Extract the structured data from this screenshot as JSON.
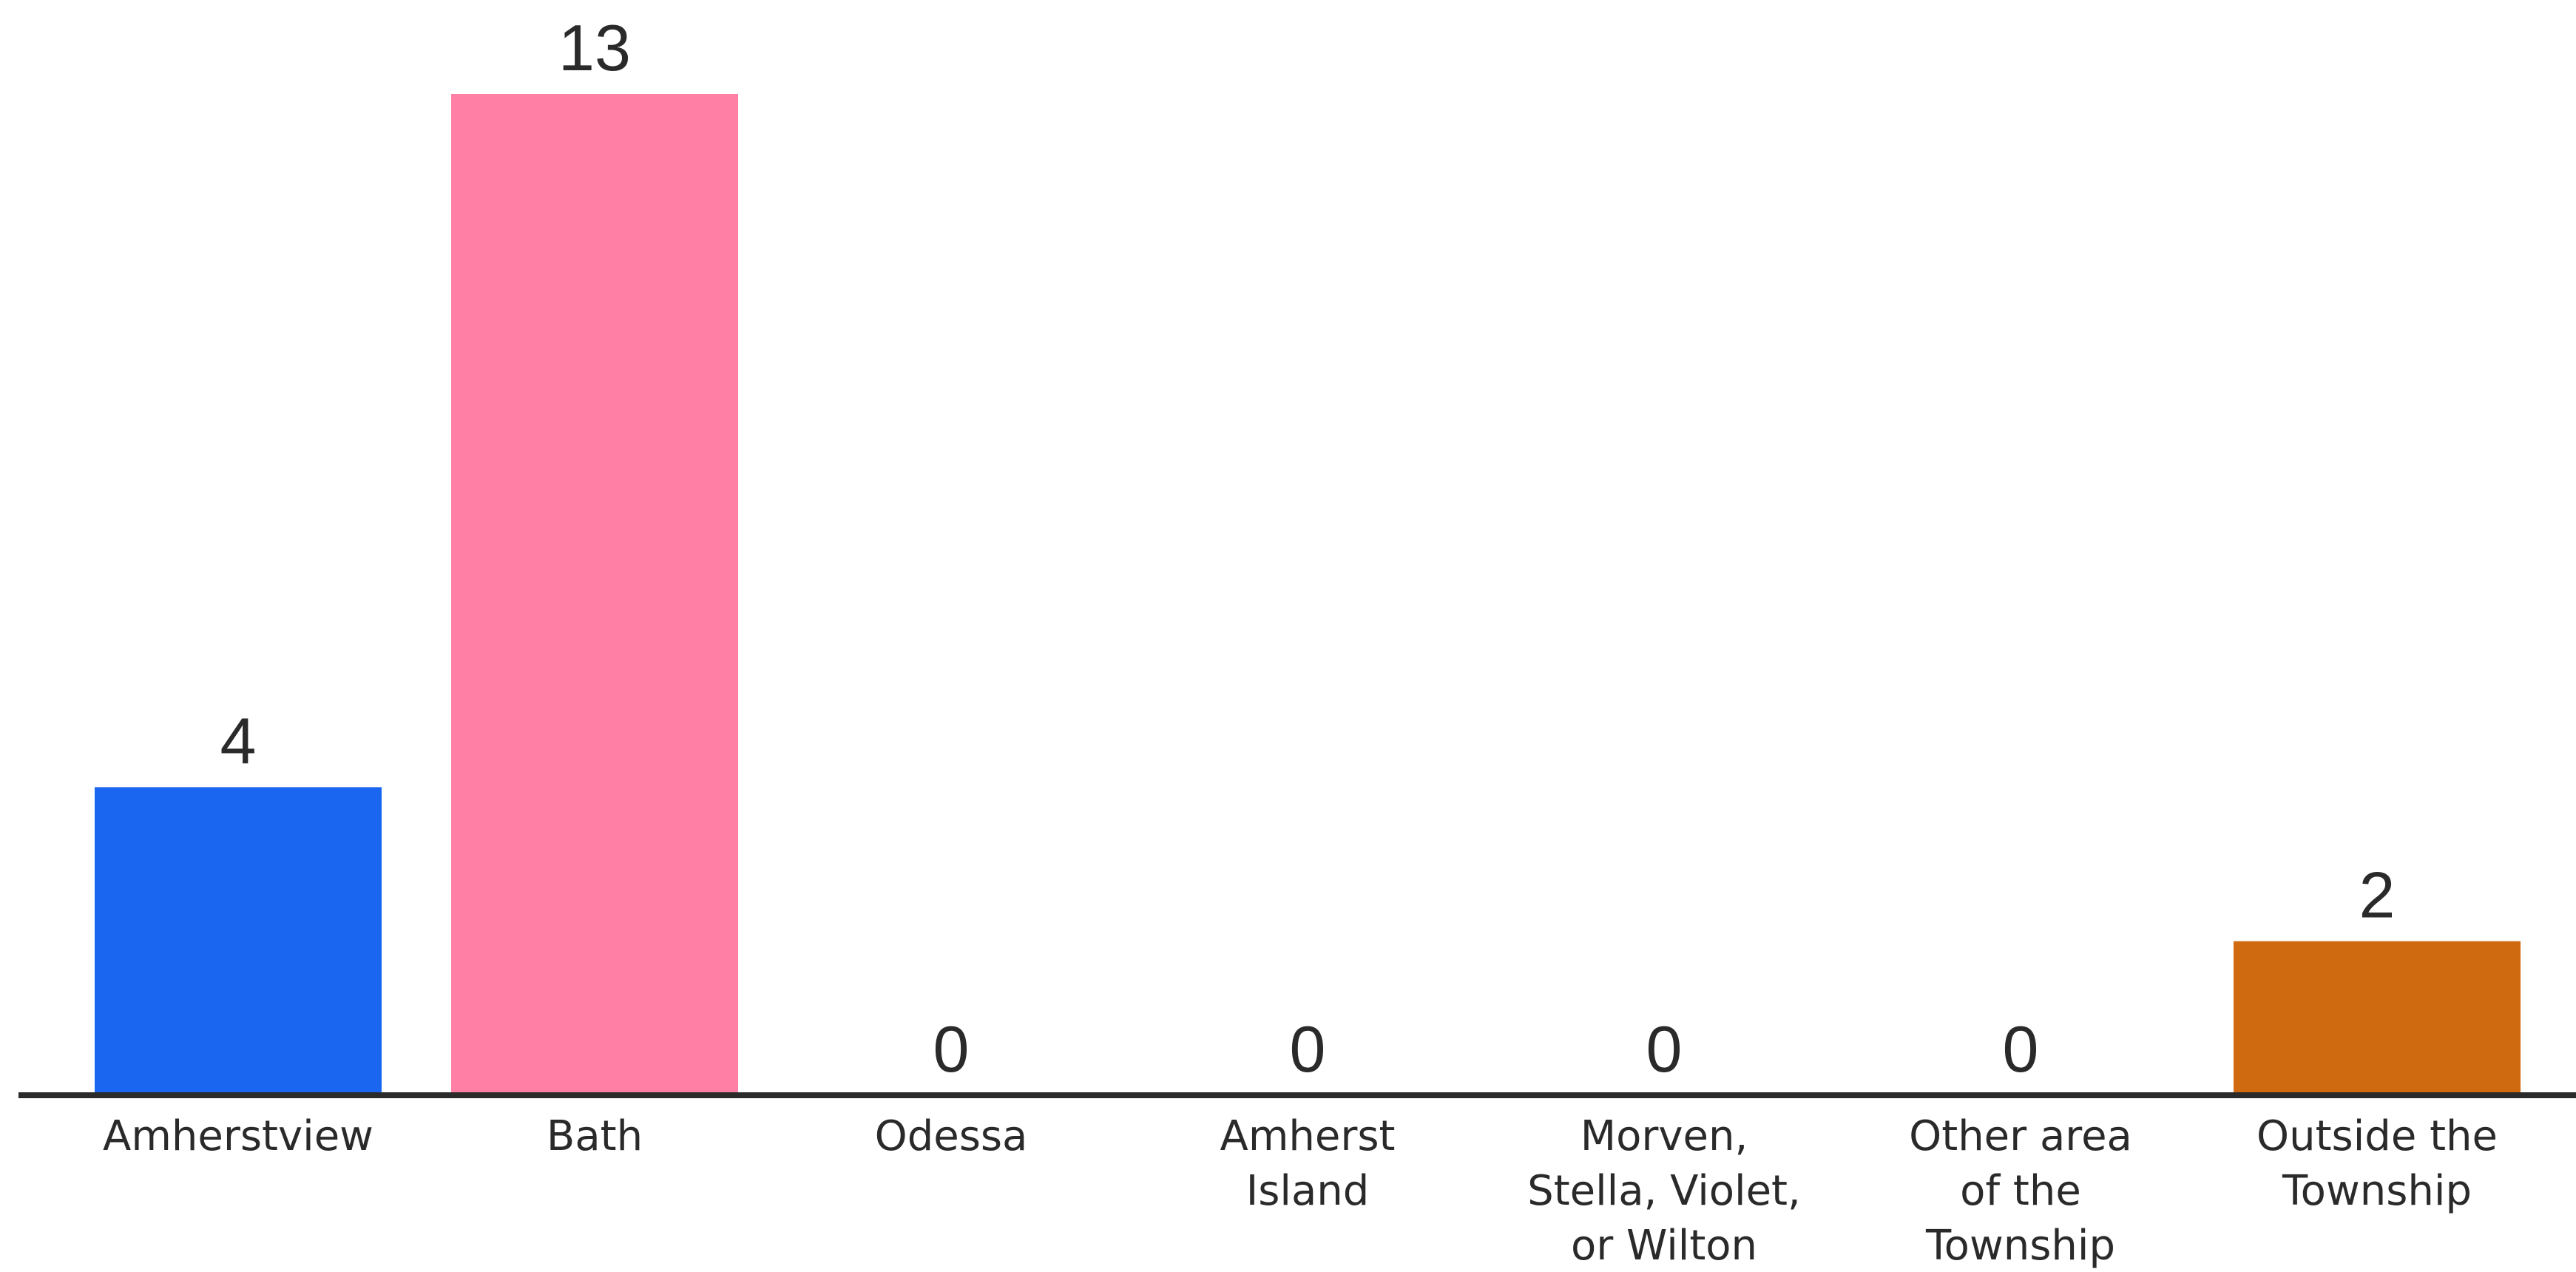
{
  "chart_data": {
    "type": "bar",
    "categories": [
      [
        "Amherstview"
      ],
      [
        "Bath"
      ],
      [
        "Odessa"
      ],
      [
        "Amherst",
        "Island"
      ],
      [
        "Morven,",
        "Stella, Violet,",
        "or Wilton"
      ],
      [
        "Other area",
        "of the",
        "Township"
      ],
      [
        "Outside the",
        "Township"
      ]
    ],
    "values": [
      4,
      13,
      0,
      0,
      0,
      0,
      2
    ],
    "value_labels": [
      "4",
      "13",
      "0",
      "0",
      "0",
      "0",
      "2"
    ],
    "colors": [
      "#1a66f0",
      "#ff7fa5",
      "#ffffff",
      "#ffffff",
      "#ffffff",
      "#ffffff",
      "#d06a10"
    ],
    "ylim": [
      0,
      13
    ],
    "title": "",
    "xlabel": "",
    "ylabel": "",
    "grid": false,
    "legend": "none"
  }
}
